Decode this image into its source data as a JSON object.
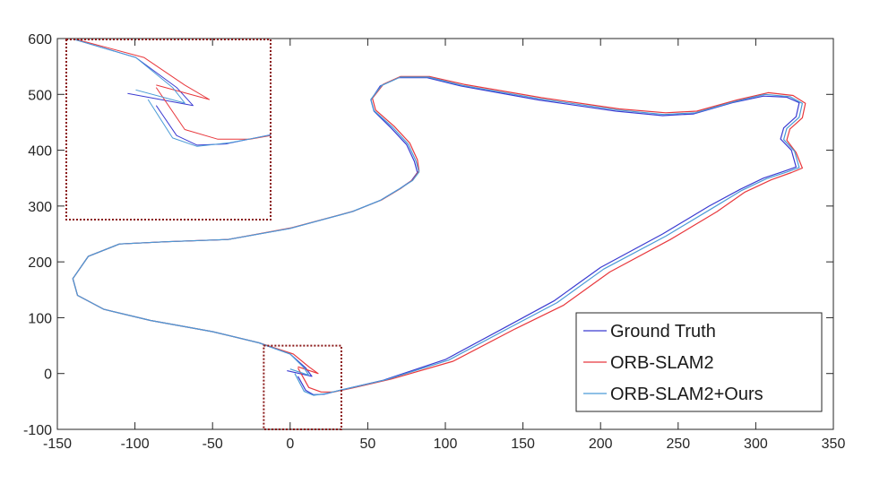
{
  "chart_data": {
    "type": "line",
    "title": "",
    "xlabel": "",
    "ylabel": "",
    "xlim": [
      -150,
      350
    ],
    "ylim": [
      -100,
      600
    ],
    "x_ticks": [
      "-150",
      "-100",
      "-50",
      "0",
      "50",
      "100",
      "150",
      "200",
      "250",
      "300",
      "350"
    ],
    "y_ticks": [
      "600",
      "500",
      "400",
      "300",
      "200",
      "100",
      "0",
      "-100"
    ],
    "grid": false,
    "legend_position": "bottom-right",
    "inset": {
      "type": "zoomed-view",
      "source_region": {
        "x": [
          -17,
          33
        ],
        "y": [
          -100,
          50
        ]
      },
      "border_color": "#8b1a1a"
    },
    "series": [
      {
        "name": "Ground Truth",
        "color": "#3b3bd1",
        "x": [
          5,
          10,
          15,
          22,
          35,
          60,
          100,
          140,
          170,
          200,
          240,
          270,
          290,
          305,
          318,
          326,
          323,
          316,
          318,
          326,
          328,
          320,
          305,
          285,
          260,
          240,
          210,
          160,
          110,
          88,
          70,
          58,
          52,
          54,
          65,
          75,
          80,
          82,
          78,
          70,
          58,
          40,
          20,
          0,
          -40,
          -80,
          -110,
          -130,
          -140,
          -137,
          -120,
          -90,
          -50,
          -20,
          0,
          10,
          14,
          -2
        ],
        "y": [
          -5,
          -30,
          -38,
          -37,
          -28,
          -12,
          25,
          85,
          130,
          190,
          250,
          300,
          330,
          350,
          362,
          370,
          400,
          420,
          440,
          460,
          485,
          495,
          497,
          485,
          465,
          462,
          470,
          490,
          515,
          530,
          530,
          515,
          490,
          470,
          440,
          410,
          380,
          360,
          345,
          330,
          310,
          290,
          275,
          260,
          240,
          236,
          232,
          210,
          170,
          140,
          115,
          95,
          75,
          55,
          35,
          10,
          -5,
          5
        ]
      },
      {
        "name": "ORB-SLAM2",
        "color": "#e8383d",
        "x": [
          5,
          12,
          20,
          28,
          40,
          65,
          105,
          145,
          176,
          206,
          245,
          275,
          293,
          310,
          323,
          330,
          326,
          320,
          322,
          330,
          332,
          324,
          308,
          288,
          262,
          242,
          212,
          162,
          112,
          90,
          71,
          60,
          53,
          55,
          67,
          77,
          82,
          83,
          79,
          71,
          59,
          41,
          21,
          1,
          -40,
          -80,
          -110,
          -130,
          -140,
          -137,
          -120,
          -90,
          -50,
          -20,
          2,
          12,
          18,
          5
        ],
        "y": [
          10,
          -25,
          -33,
          -33,
          -26,
          -10,
          22,
          80,
          122,
          182,
          240,
          290,
          325,
          347,
          360,
          368,
          396,
          418,
          438,
          458,
          484,
          498,
          503,
          490,
          470,
          467,
          474,
          494,
          518,
          532,
          532,
          518,
          493,
          472,
          443,
          413,
          383,
          363,
          347,
          331,
          311,
          291,
          276,
          261,
          240,
          236,
          232,
          210,
          170,
          140,
          115,
          95,
          75,
          55,
          35,
          12,
          0,
          12
        ]
      },
      {
        "name": "ORB-SLAM2+Ours",
        "color": "#4a9bd6",
        "x": [
          3,
          9,
          15,
          23,
          37,
          62,
          102,
          142,
          172,
          202,
          242,
          272,
          291,
          307,
          320,
          328,
          325,
          318,
          320,
          328,
          330,
          322,
          306,
          286,
          261,
          241,
          211,
          161,
          111,
          89,
          71,
          59,
          52,
          54,
          66,
          76,
          81,
          83,
          79,
          70,
          58,
          40,
          20,
          0,
          -40,
          -80,
          -110,
          -130,
          -140,
          -137,
          -120,
          -90,
          -50,
          -20,
          0,
          9,
          12,
          0
        ],
        "y": [
          0,
          -32,
          -39,
          -36,
          -27,
          -11,
          24,
          83,
          127,
          187,
          246,
          296,
          328,
          349,
          361,
          369,
          398,
          419,
          439,
          459,
          484,
          496,
          500,
          487,
          467,
          464,
          472,
          492,
          516,
          531,
          531,
          516,
          491,
          471,
          441,
          411,
          381,
          361,
          346,
          330,
          310,
          290,
          275,
          260,
          240,
          236,
          232,
          210,
          170,
          140,
          115,
          95,
          75,
          55,
          35,
          10,
          -3,
          8
        ]
      }
    ]
  }
}
